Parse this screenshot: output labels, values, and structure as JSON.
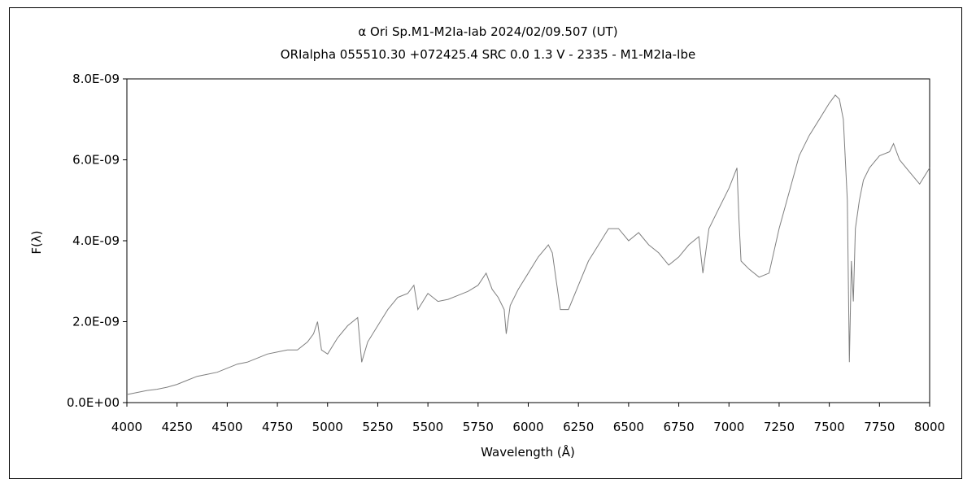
{
  "chart_data": {
    "type": "line",
    "title": "α Ori    Sp.M1-M2Ia-Iab   2024/02/09.507 (UT)",
    "subtitle": "ORIalpha 055510.30 +072425.4 SRC 0.0 1.3 V - 2335 - M1-M2Ia-Ibe",
    "xlabel": "Wavelength (Å)",
    "ylabel": "F(λ)",
    "xlim": [
      4000,
      8000
    ],
    "ylim": [
      0,
      8e-09
    ],
    "grid": false,
    "legend": "none",
    "line_color": "#7f7f7f",
    "xticks": [
      4000,
      4250,
      4500,
      4750,
      5000,
      5250,
      5500,
      5750,
      6000,
      6250,
      6500,
      6750,
      7000,
      7250,
      7500,
      7750,
      8000
    ],
    "yticks": [
      {
        "value": 0,
        "label": "0.0E+00"
      },
      {
        "value": 2e-09,
        "label": "2.0E-09"
      },
      {
        "value": 4e-09,
        "label": "4.0E-09"
      },
      {
        "value": 6e-09,
        "label": "6.0E-09"
      },
      {
        "value": 8e-09,
        "label": "8.0E-09"
      }
    ],
    "series": [
      {
        "x": [
          4000,
          4050,
          4100,
          4150,
          4200,
          4250,
          4300,
          4350,
          4400,
          4450,
          4500,
          4550,
          4600,
          4650,
          4700,
          4750,
          4800,
          4850,
          4900,
          4930,
          4950,
          4970,
          5000,
          5050,
          5100,
          5150,
          5170,
          5200,
          5250,
          5300,
          5350,
          5400,
          5430,
          5450,
          5500,
          5550,
          5600,
          5650,
          5700,
          5750,
          5790,
          5820,
          5850,
          5880,
          5890,
          5910,
          5950,
          6000,
          6050,
          6100,
          6120,
          6140,
          6160,
          6200,
          6250,
          6300,
          6350,
          6400,
          6450,
          6500,
          6550,
          6600,
          6650,
          6700,
          6750,
          6800,
          6850,
          6870,
          6900,
          6950,
          7000,
          7040,
          7050,
          7060,
          7080,
          7100,
          7150,
          7200,
          7250,
          7300,
          7350,
          7400,
          7450,
          7500,
          7530,
          7550,
          7570,
          7590,
          7600,
          7610,
          7620,
          7630,
          7650,
          7670,
          7700,
          7750,
          7800,
          7820,
          7850,
          7900,
          7950,
          8000
        ],
        "y": [
          2e-10,
          2.5e-10,
          3e-10,
          3.3e-10,
          3.8e-10,
          4.5e-10,
          5.5e-10,
          6.5e-10,
          7e-10,
          7.5e-10,
          8.5e-10,
          9.5e-10,
          1e-09,
          1.1e-09,
          1.2e-09,
          1.25e-09,
          1.3e-09,
          1.3e-09,
          1.5e-09,
          1.7e-09,
          2e-09,
          1.3e-09,
          1.2e-09,
          1.6e-09,
          1.9e-09,
          2.1e-09,
          1e-09,
          1.5e-09,
          1.9e-09,
          2.3e-09,
          2.6e-09,
          2.7e-09,
          2.9e-09,
          2.3e-09,
          2.7e-09,
          2.5e-09,
          2.55e-09,
          2.65e-09,
          2.75e-09,
          2.9e-09,
          3.2e-09,
          2.8e-09,
          2.6e-09,
          2.3e-09,
          1.7e-09,
          2.4e-09,
          2.8e-09,
          3.2e-09,
          3.6e-09,
          3.9e-09,
          3.7e-09,
          3e-09,
          2.3e-09,
          2.3e-09,
          2.9e-09,
          3.5e-09,
          3.9e-09,
          4.3e-09,
          4.3e-09,
          4e-09,
          4.2e-09,
          3.9e-09,
          3.7e-09,
          3.4e-09,
          3.6e-09,
          3.9e-09,
          4.1e-09,
          3.2e-09,
          4.3e-09,
          4.8e-09,
          5.3e-09,
          5.8e-09,
          4.5e-09,
          3.5e-09,
          3.4e-09,
          3.3e-09,
          3.1e-09,
          3.2e-09,
          4.3e-09,
          5.2e-09,
          6.1e-09,
          6.6e-09,
          7e-09,
          7.4e-09,
          7.6e-09,
          7.5e-09,
          7e-09,
          5e-09,
          1e-09,
          3.5e-09,
          2.5e-09,
          4.3e-09,
          5e-09,
          5.5e-09,
          5.8e-09,
          6.1e-09,
          6.2e-09,
          6.4e-09,
          6e-09,
          5.7e-09,
          5.4e-09,
          5.8e-09
        ]
      }
    ]
  }
}
